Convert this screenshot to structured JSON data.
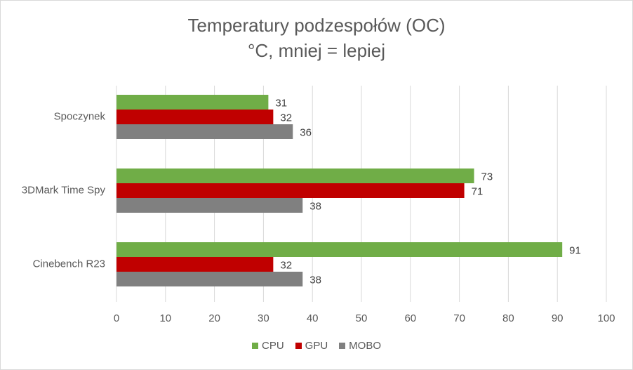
{
  "chart_data": {
    "type": "bar",
    "orientation": "horizontal",
    "title": "Temperatury podzespołów (OC)",
    "subtitle": "°C, mniej = lepiej",
    "categories": [
      "Spoczynek",
      "3DMark Time Spy",
      "Cinebench R23"
    ],
    "series": [
      {
        "name": "CPU",
        "color": "#70ad47",
        "values": [
          31,
          73,
          91
        ]
      },
      {
        "name": "GPU",
        "color": "#c00000",
        "values": [
          32,
          71,
          32
        ]
      },
      {
        "name": "MOBO",
        "color": "#808080",
        "values": [
          36,
          38,
          38
        ]
      }
    ],
    "xlim": [
      0,
      100
    ],
    "xticks": [
      0,
      10,
      20,
      30,
      40,
      50,
      60,
      70,
      80,
      90,
      100
    ],
    "grid": true,
    "data_labels": true,
    "legend_position": "bottom"
  }
}
